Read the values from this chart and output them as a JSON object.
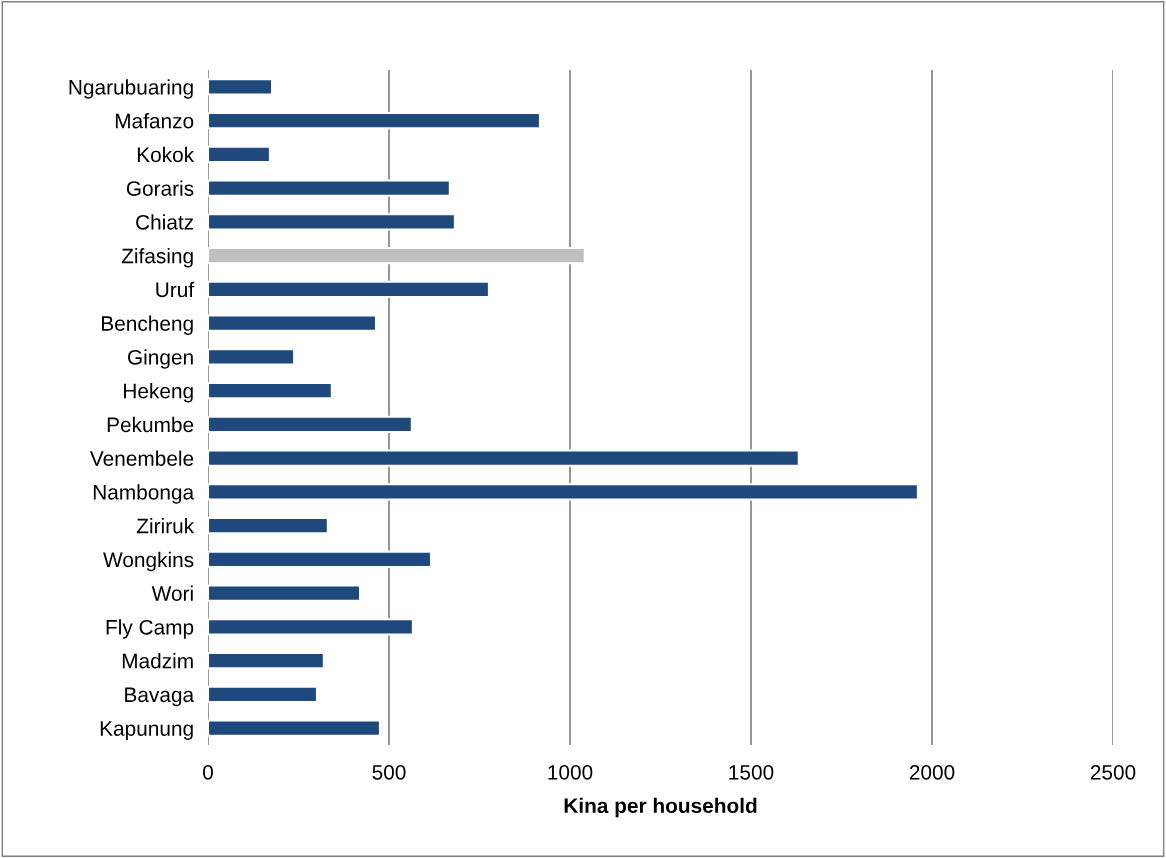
{
  "chart_data": {
    "type": "bar",
    "orientation": "horizontal",
    "xlabel": "Kina per household",
    "categories": [
      "Ngarubuaring",
      "Mafanzo",
      "Kokok",
      "Goraris",
      "Chiatz",
      "Zifasing",
      "Uruf",
      "Bencheng",
      "Gingen",
      "Hekeng",
      "Pekumbe",
      "Venembele",
      "Nambonga",
      "Ziriruk",
      "Wongkins",
      "Wori",
      "Fly Camp",
      "Madzim",
      "Bavaga",
      "Kapunung"
    ],
    "values": [
      177,
      917,
      171,
      668,
      682,
      1041,
      776,
      464,
      238,
      342,
      563,
      1632,
      1961,
      331,
      616,
      420,
      566,
      320,
      301,
      475
    ],
    "colors": [
      "#1f497d",
      "#1f497d",
      "#1f497d",
      "#1f497d",
      "#1f497d",
      "#bfbfbf",
      "#1f497d",
      "#1f497d",
      "#1f497d",
      "#1f497d",
      "#1f497d",
      "#1f497d",
      "#1f497d",
      "#1f497d",
      "#1f497d",
      "#1f497d",
      "#1f497d",
      "#1f497d",
      "#1f497d",
      "#1f497d"
    ],
    "xlim": [
      0,
      2500
    ],
    "xticks": [
      0,
      500,
      1000,
      1500,
      2000,
      2500
    ],
    "grid": "x",
    "legend": false
  }
}
